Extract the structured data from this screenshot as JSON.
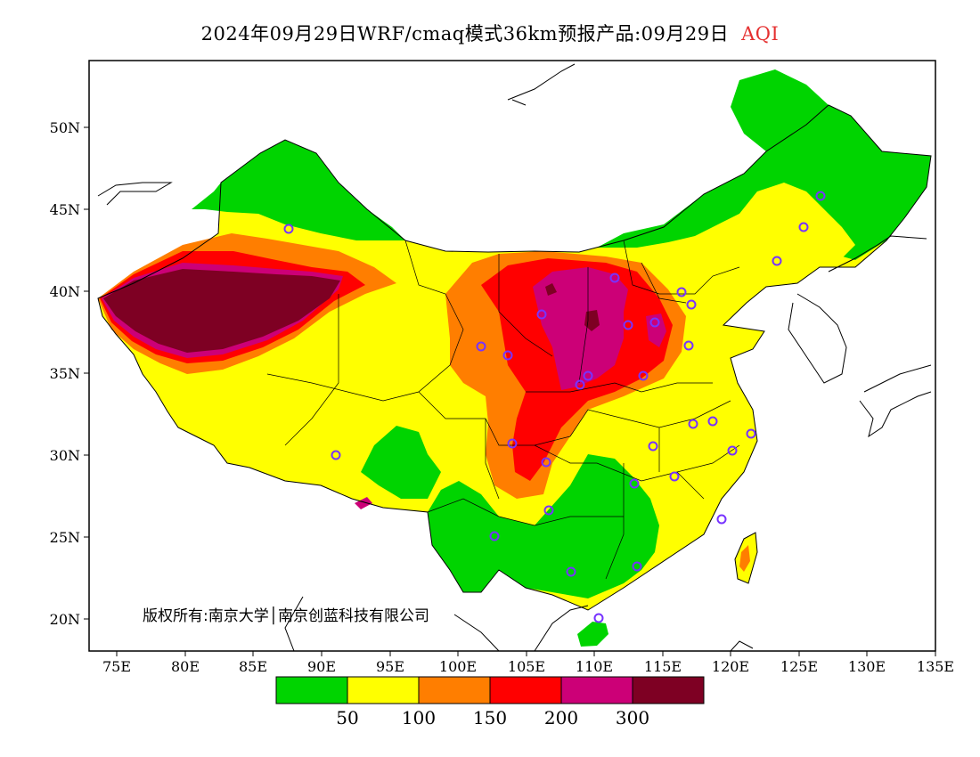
{
  "title": "2024年09月29日WRF/cmaq模式36km预报产品:09月29日",
  "variable": "AQI",
  "copyright": "版权所有:南京大学│南京创蓝科技有限公司",
  "colors": {
    "green": "#00d400",
    "yellow": "#ffff00",
    "orange": "#ff7e00",
    "red": "#ff0000",
    "purple": "#cc0077",
    "maroon": "#7e0023",
    "station": "#7733ff"
  },
  "axes": {
    "lat_ticks": [
      "50N",
      "45N",
      "40N",
      "35N",
      "30N",
      "25N",
      "20N"
    ],
    "lon_ticks": [
      "75E",
      "80E",
      "85E",
      "90E",
      "95E",
      "100E",
      "105E",
      "110E",
      "115E",
      "120E",
      "125E",
      "130E",
      "135E"
    ]
  },
  "legend": {
    "labels": [
      "50",
      "100",
      "150",
      "200",
      "300"
    ]
  }
}
